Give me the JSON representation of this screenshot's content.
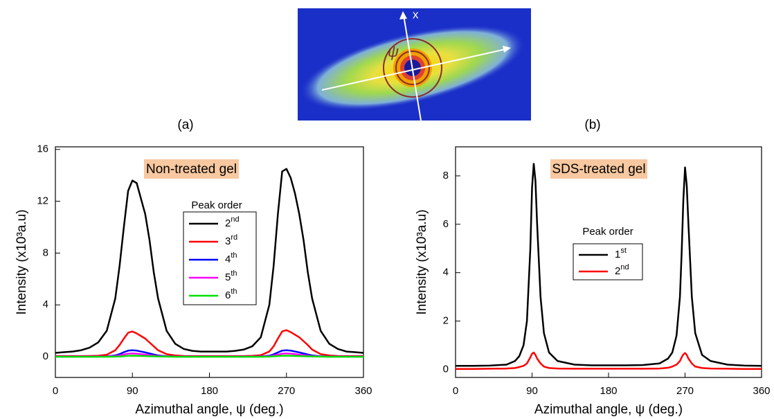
{
  "figure": {
    "image_labels": {
      "axis": "x",
      "angle": "ψ"
    }
  },
  "chart_data": [
    {
      "type": "line",
      "panel_label": "(a)",
      "annotation": "Non-treated gel",
      "x_label": "Azimuthal angle, ψ (deg.)",
      "y_label": "Intensity (x10³a.u)",
      "legend": {
        "title": "Peak order"
      },
      "xlim": [
        0,
        360
      ],
      "xticks": [
        0,
        90,
        180,
        270,
        360
      ],
      "ylim": [
        -1.6,
        16.2
      ],
      "yticks": [
        0,
        4,
        8,
        12,
        16
      ],
      "x": [
        0,
        10,
        20,
        30,
        40,
        50,
        60,
        70,
        75,
        80,
        85,
        90,
        95,
        100,
        105,
        110,
        115,
        120,
        130,
        140,
        150,
        160,
        170,
        180,
        190,
        200,
        210,
        220,
        230,
        240,
        250,
        255,
        260,
        265,
        270,
        275,
        280,
        285,
        290,
        295,
        300,
        310,
        320,
        330,
        340,
        350,
        360
      ],
      "series": [
        {
          "name": "2nd",
          "color": "#000000",
          "values": [
            0.3,
            0.35,
            0.4,
            0.5,
            0.7,
            1.1,
            2.0,
            4.5,
            7,
            10,
            12.8,
            13.6,
            13.4,
            12.2,
            11,
            9,
            6.5,
            4.5,
            2.0,
            1.0,
            0.6,
            0.45,
            0.4,
            0.4,
            0.4,
            0.4,
            0.45,
            0.55,
            0.8,
            1.5,
            4,
            7,
            11,
            14.3,
            14.5,
            13.8,
            12.6,
            11,
            9,
            6.5,
            4.5,
            2,
            1,
            0.6,
            0.4,
            0.35,
            0.3
          ]
        },
        {
          "name": "3rd",
          "color": "#ff0000",
          "values": [
            0.05,
            0.05,
            0.05,
            0.05,
            0.06,
            0.08,
            0.15,
            0.5,
            0.9,
            1.4,
            1.85,
            1.95,
            1.8,
            1.6,
            1.4,
            1.1,
            0.8,
            0.5,
            0.2,
            0.1,
            0.06,
            0.05,
            0.05,
            0.05,
            0.05,
            0.05,
            0.05,
            0.05,
            0.07,
            0.12,
            0.4,
            0.8,
            1.4,
            1.95,
            2.05,
            1.9,
            1.7,
            1.5,
            1.2,
            0.9,
            0.55,
            0.2,
            0.1,
            0.06,
            0.05,
            0.05,
            0.05
          ]
        },
        {
          "name": "4th",
          "color": "#0000ff",
          "values": [
            0.02,
            0.02,
            0.02,
            0.02,
            0.02,
            0.02,
            0.03,
            0.1,
            0.2,
            0.35,
            0.47,
            0.5,
            0.47,
            0.4,
            0.33,
            0.25,
            0.17,
            0.1,
            0.04,
            0.02,
            0.02,
            0.02,
            0.02,
            0.02,
            0.02,
            0.02,
            0.02,
            0.02,
            0.02,
            0.03,
            0.08,
            0.18,
            0.33,
            0.47,
            0.5,
            0.47,
            0.4,
            0.33,
            0.25,
            0.17,
            0.1,
            0.04,
            0.02,
            0.02,
            0.02,
            0.02,
            0.02
          ]
        },
        {
          "name": "5th",
          "color": "#ff00ff",
          "values": [
            0.01,
            0.01,
            0.01,
            0.01,
            0.01,
            0.01,
            0.02,
            0.05,
            0.1,
            0.17,
            0.23,
            0.25,
            0.23,
            0.2,
            0.16,
            0.12,
            0.08,
            0.05,
            0.02,
            0.01,
            0.01,
            0.01,
            0.01,
            0.01,
            0.01,
            0.01,
            0.01,
            0.01,
            0.01,
            0.02,
            0.04,
            0.09,
            0.16,
            0.23,
            0.25,
            0.23,
            0.2,
            0.16,
            0.12,
            0.08,
            0.05,
            0.02,
            0.01,
            0.01,
            0.01,
            0.01,
            0.01
          ]
        },
        {
          "name": "6th",
          "color": "#00e000",
          "values": [
            0,
            0,
            0,
            0,
            0,
            0,
            0,
            0.01,
            0.02,
            0.04,
            0.07,
            0.08,
            0.07,
            0.06,
            0.05,
            0.04,
            0.03,
            0.02,
            0.01,
            0,
            0,
            0,
            0,
            0,
            0,
            0,
            0,
            0,
            0,
            0,
            0.01,
            0.03,
            0.05,
            0.07,
            0.08,
            0.07,
            0.06,
            0.05,
            0.04,
            0.03,
            0.02,
            0.01,
            0,
            0,
            0,
            0,
            0
          ]
        }
      ]
    },
    {
      "type": "line",
      "panel_label": "(b)",
      "annotation": "SDS-treated gel",
      "x_label": "Azimuthal angle, ψ (deg.)",
      "y_label": "Intensity (x10³a.u)",
      "legend": {
        "title": "Peak order"
      },
      "xlim": [
        0,
        360
      ],
      "xticks": [
        0,
        90,
        180,
        270,
        360
      ],
      "ylim": [
        -0.33,
        9.2
      ],
      "yticks": [
        0,
        2,
        4,
        6,
        8
      ],
      "x": [
        0,
        20,
        40,
        60,
        70,
        75,
        80,
        84,
        88,
        90,
        92,
        94,
        96,
        100,
        104,
        110,
        120,
        140,
        160,
        180,
        200,
        220,
        240,
        250,
        255,
        260,
        264,
        266,
        268,
        270,
        272,
        274,
        278,
        282,
        290,
        300,
        320,
        340,
        360
      ],
      "series": [
        {
          "name": "1st",
          "color": "#000000",
          "values": [
            0.15,
            0.15,
            0.16,
            0.2,
            0.35,
            0.55,
            1.0,
            2.0,
            5.0,
            7.5,
            8.5,
            7.8,
            6.0,
            3.0,
            1.5,
            0.7,
            0.35,
            0.2,
            0.17,
            0.17,
            0.17,
            0.18,
            0.25,
            0.45,
            0.7,
            1.4,
            3.0,
            4.8,
            7.0,
            8.35,
            7.6,
            6.0,
            3.0,
            1.5,
            0.6,
            0.35,
            0.2,
            0.16,
            0.15
          ]
        },
        {
          "name": "2nd",
          "color": "#ff0000",
          "values": [
            0.02,
            0.02,
            0.03,
            0.04,
            0.06,
            0.1,
            0.15,
            0.25,
            0.5,
            0.65,
            0.7,
            0.6,
            0.45,
            0.25,
            0.12,
            0.06,
            0.04,
            0.03,
            0.03,
            0.03,
            0.03,
            0.03,
            0.04,
            0.07,
            0.12,
            0.2,
            0.35,
            0.5,
            0.62,
            0.68,
            0.6,
            0.45,
            0.25,
            0.12,
            0.06,
            0.04,
            0.03,
            0.02,
            0.02
          ]
        }
      ]
    }
  ]
}
